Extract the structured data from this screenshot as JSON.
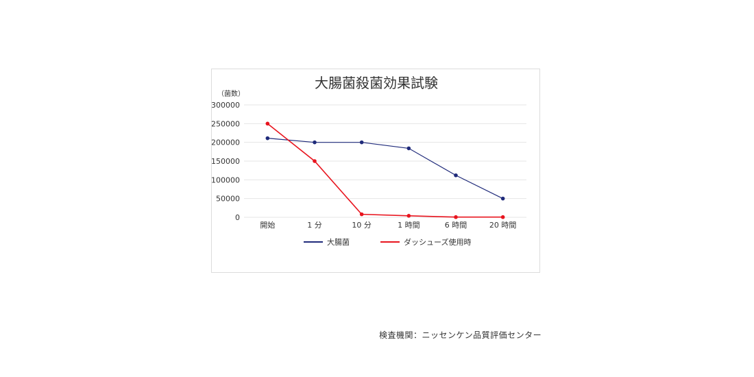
{
  "chart_data": {
    "type": "line",
    "title": "大腸菌殺菌効果試験",
    "ylabel": "（菌数）",
    "xlabel": "",
    "categories": [
      "開始",
      "1 分",
      "10 分",
      "1 時間",
      "6 時間",
      "20 時間"
    ],
    "ylim": [
      0,
      300000
    ],
    "yticks": [
      0,
      50000,
      100000,
      150000,
      200000,
      250000,
      300000
    ],
    "grid": true,
    "legend_position": "bottom",
    "series": [
      {
        "name": "大腸菌",
        "color": "#1f2a7a",
        "values": [
          211000,
          200000,
          200000,
          184000,
          112000,
          50000
        ]
      },
      {
        "name": "ダッシューズ使用時",
        "color": "#e8141e",
        "values": [
          250000,
          150000,
          8000,
          4000,
          500,
          500
        ]
      }
    ]
  },
  "footer": {
    "source": "検査機関：ニッセンケン品質評価センター"
  }
}
